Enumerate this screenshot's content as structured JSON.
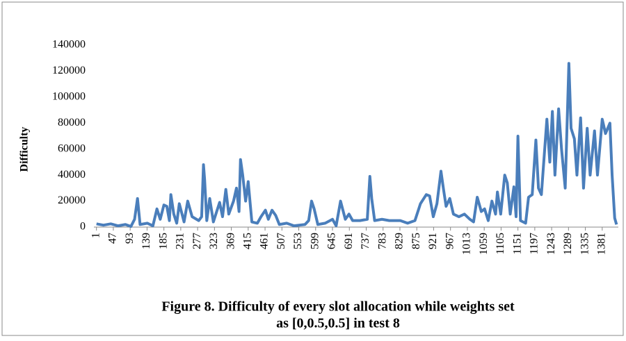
{
  "chart_data": {
    "type": "line",
    "title": [
      "Figure 8. Difficulty of every slot allocation while weights set",
      "as [0,0.5,0.5] in test 8"
    ],
    "ylabel": "Difficulty",
    "xlim": [
      -6,
      1425
    ],
    "xticks": [
      1,
      47,
      93,
      139,
      185,
      231,
      277,
      323,
      369,
      415,
      461,
      507,
      553,
      599,
      645,
      691,
      737,
      783,
      829,
      875,
      921,
      967,
      1013,
      1059,
      1105,
      1151,
      1197,
      1243,
      1289,
      1335,
      1381
    ],
    "ylim": [
      0,
      140000
    ],
    "yticks": [
      0,
      20000,
      40000,
      60000,
      80000,
      100000,
      120000,
      140000
    ],
    "x": [
      1,
      20,
      40,
      60,
      80,
      95,
      105,
      113,
      120,
      140,
      155,
      166,
      175,
      185,
      193,
      200,
      204,
      212,
      220,
      227,
      240,
      250,
      262,
      280,
      288,
      293,
      296,
      302,
      310,
      320,
      337,
      345,
      354,
      362,
      375,
      383,
      390,
      394,
      400,
      408,
      415,
      425,
      440,
      450,
      462,
      470,
      480,
      490,
      500,
      520,
      540,
      570,
      580,
      588,
      595,
      605,
      625,
      645,
      655,
      667,
      680,
      690,
      700,
      720,
      740,
      747,
      752,
      760,
      780,
      800,
      830,
      850,
      870,
      885,
      901,
      910,
      920,
      930,
      941,
      948,
      955,
      965,
      975,
      990,
      1005,
      1020,
      1030,
      1040,
      1051,
      1060,
      1070,
      1080,
      1090,
      1095,
      1104,
      1115,
      1122,
      1130,
      1140,
      1146,
      1151,
      1158,
      1172,
      1180,
      1190,
      1200,
      1207,
      1215,
      1230,
      1238,
      1245,
      1252,
      1262,
      1270,
      1280,
      1290,
      1296,
      1305,
      1312,
      1322,
      1330,
      1340,
      1348,
      1360,
      1368,
      1381,
      1390,
      1402,
      1408,
      1415,
      1420
    ],
    "series": [
      {
        "name": "Difficulty",
        "color": "#4a7ebb",
        "values": [
          2500,
          1500,
          2500,
          1000,
          2000,
          500,
          6000,
          22000,
          2000,
          3000,
          1000,
          14000,
          6000,
          17000,
          16000,
          5000,
          25000,
          10000,
          3000,
          18000,
          4000,
          20000,
          8000,
          5000,
          8000,
          48000,
          37000,
          5000,
          22000,
          4000,
          19000,
          8000,
          29000,
          10000,
          20000,
          30000,
          12000,
          52000,
          40000,
          20000,
          35000,
          4000,
          3000,
          8000,
          13000,
          6000,
          13000,
          9000,
          2000,
          3000,
          1000,
          2000,
          5000,
          20000,
          14000,
          2000,
          3000,
          6000,
          1000,
          20000,
          6000,
          10000,
          5000,
          5000,
          6000,
          39000,
          22000,
          5000,
          6000,
          5000,
          5000,
          3000,
          5000,
          18000,
          25000,
          24000,
          8000,
          18000,
          43000,
          29000,
          16000,
          22000,
          10000,
          8000,
          10000,
          6000,
          4000,
          23000,
          12000,
          14000,
          5000,
          20000,
          10000,
          27000,
          10000,
          40000,
          34000,
          10000,
          31000,
          8000,
          70000,
          5000,
          3000,
          23000,
          25000,
          67000,
          30000,
          25000,
          83000,
          50000,
          89000,
          40000,
          91000,
          60000,
          30000,
          126000,
          76000,
          68000,
          40000,
          84000,
          30000,
          76000,
          40000,
          74000,
          40000,
          83000,
          72000,
          80000,
          40000,
          7000,
          2000
        ]
      }
    ],
    "grid": false
  }
}
